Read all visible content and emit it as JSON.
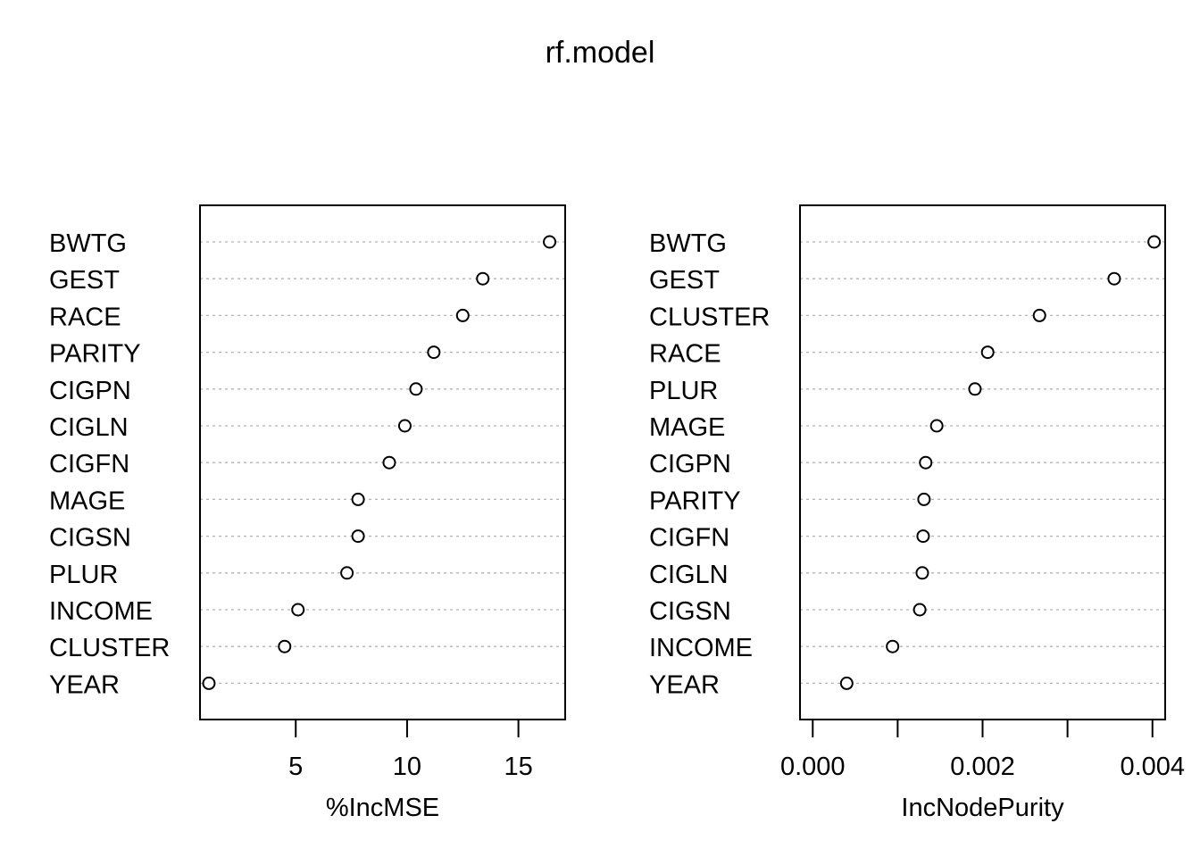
{
  "title": "rf.model",
  "chart_data": [
    {
      "type": "scatter",
      "subtype": "dotchart",
      "xlabel": "%IncMSE",
      "xlim": [
        0.7,
        17.1
      ],
      "xticks": [
        5,
        10,
        15
      ],
      "xtick_labels": [
        "5",
        "10",
        "15"
      ],
      "grid": "dotted horizontal lines per variable",
      "categories": [
        "BWTG",
        "GEST",
        "RACE",
        "PARITY",
        "CIGPN",
        "CIGLN",
        "CIGFN",
        "MAGE",
        "CIGSN",
        "PLUR",
        "INCOME",
        "CLUSTER",
        "YEAR"
      ],
      "values": [
        16.4,
        13.4,
        12.5,
        11.2,
        10.4,
        9.9,
        9.2,
        7.8,
        7.8,
        7.3,
        5.1,
        4.5,
        1.1
      ]
    },
    {
      "type": "scatter",
      "subtype": "dotchart",
      "xlabel": "IncNodePurity",
      "xlim": [
        -0.00015,
        0.00415
      ],
      "xticks": [
        0.0,
        0.001,
        0.002,
        0.003,
        0.004
      ],
      "xtick_labels": [
        "0.000",
        "",
        "0.002",
        "",
        "0.004"
      ],
      "grid": "dotted horizontal lines per variable",
      "categories": [
        "BWTG",
        "GEST",
        "CLUSTER",
        "RACE",
        "PLUR",
        "MAGE",
        "CIGPN",
        "PARITY",
        "CIGFN",
        "CIGLN",
        "CIGSN",
        "INCOME",
        "YEAR"
      ],
      "values": [
        0.00402,
        0.00355,
        0.00267,
        0.00206,
        0.00191,
        0.00146,
        0.00133,
        0.00131,
        0.0013,
        0.00129,
        0.00126,
        0.00094,
        0.0004
      ]
    }
  ]
}
